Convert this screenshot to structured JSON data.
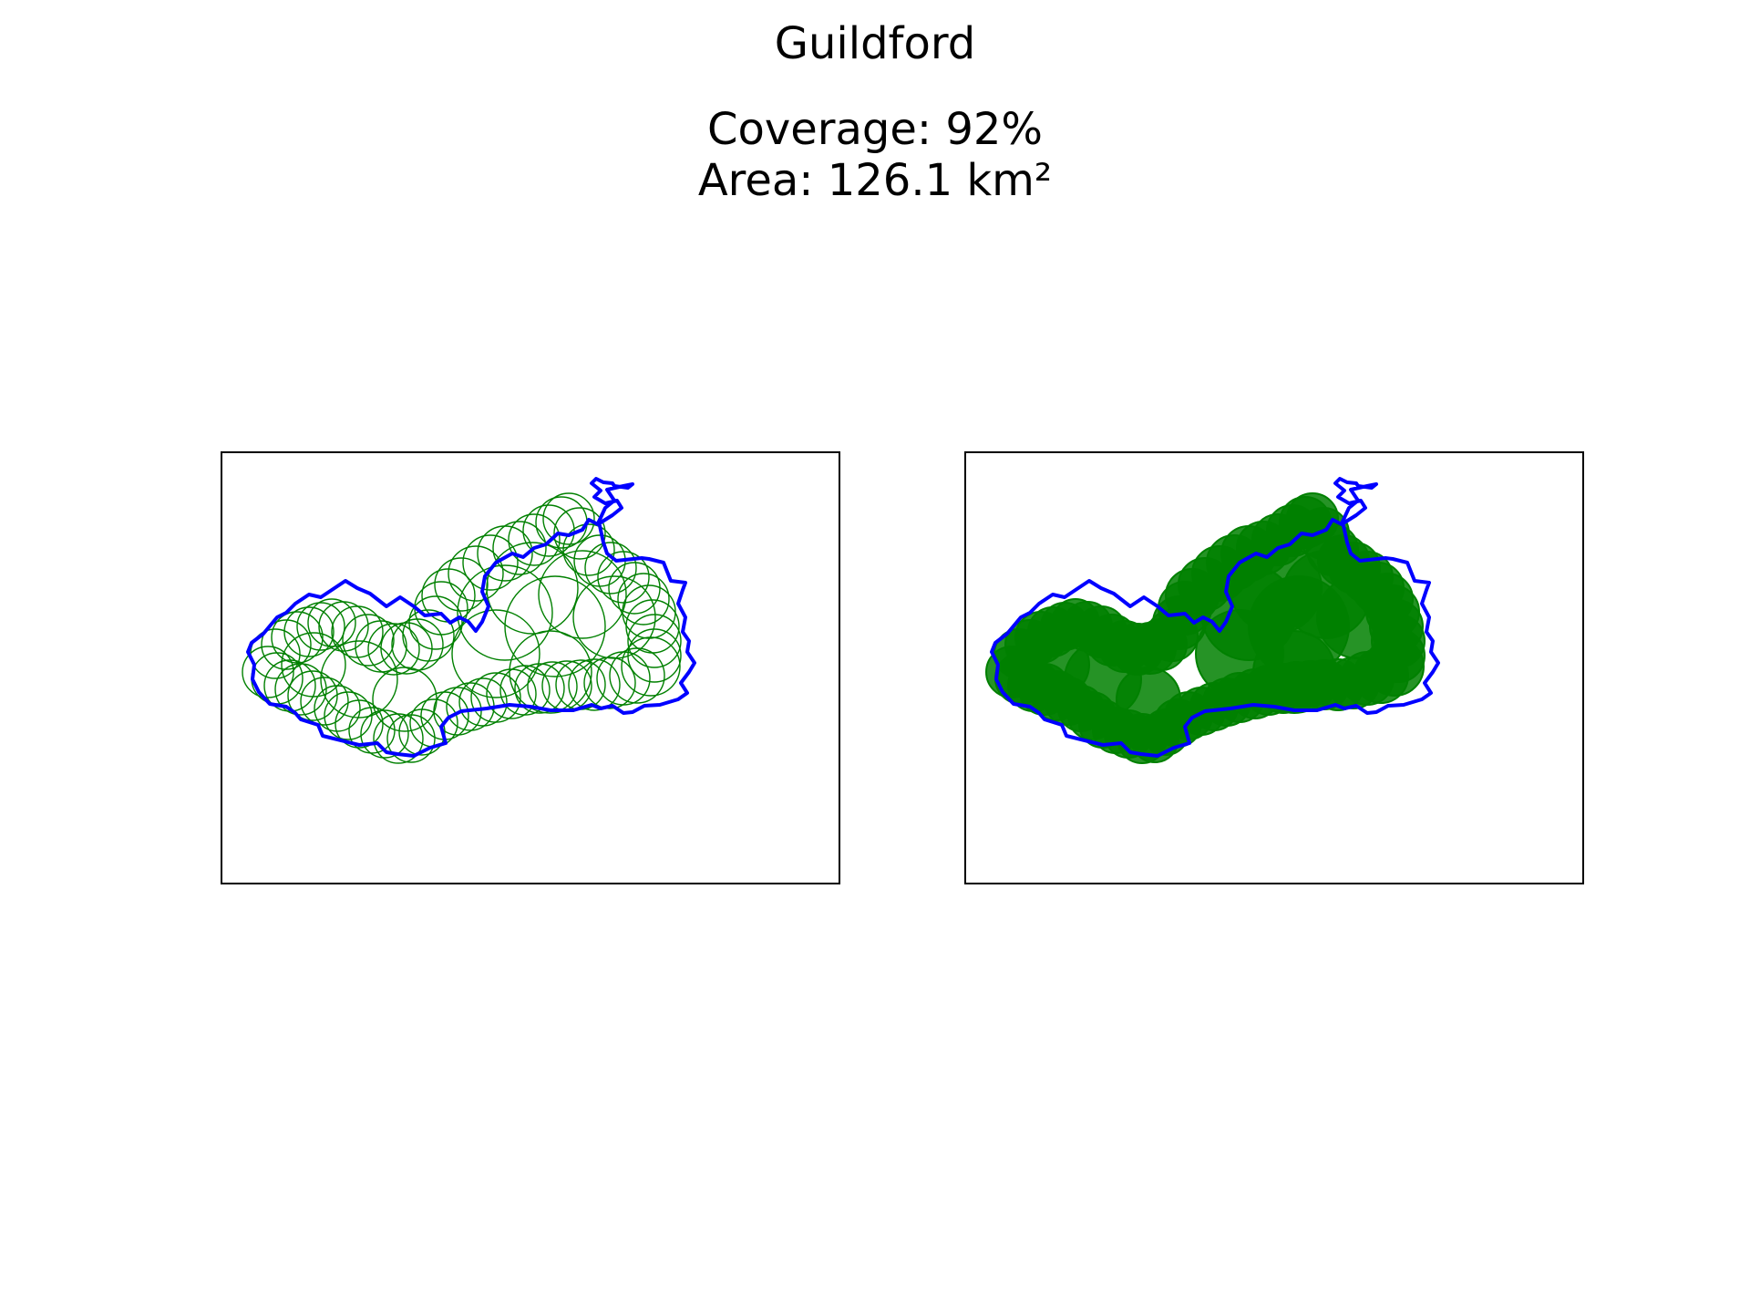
{
  "title": "Guildford",
  "stats": {
    "coverage": "Coverage: 92%",
    "area": "Area: 126.1 km²"
  },
  "colors": {
    "boundary": "#0000ff",
    "coverage": "#008000",
    "frame": "#000000"
  },
  "panels": [
    {
      "name": "outline-circles",
      "style": "outline"
    },
    {
      "name": "filled-circles",
      "style": "filled"
    }
  ]
}
